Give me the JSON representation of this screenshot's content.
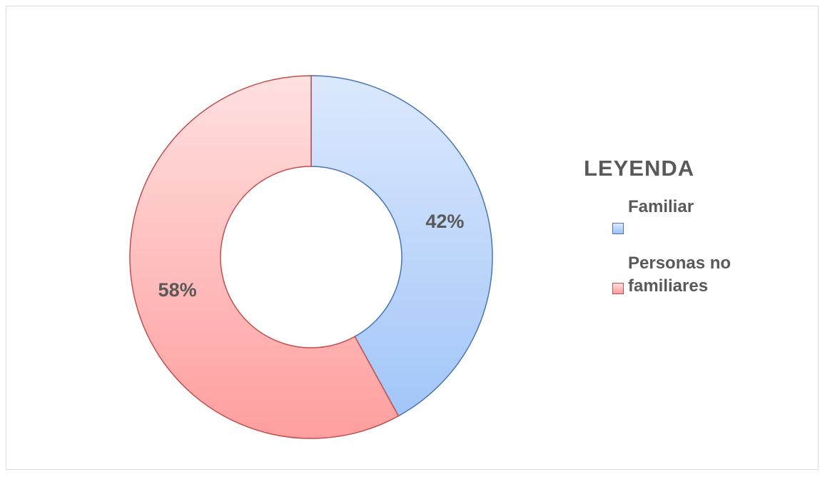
{
  "chart_data": {
    "type": "donut",
    "legend_title": "LEYENDA",
    "categories": [
      "Familiar",
      "Personas no familiares"
    ],
    "values": [
      42,
      58
    ],
    "value_labels": [
      "42%",
      "58%"
    ],
    "colors": [
      [
        "#dce9fd",
        "#9ec3f8"
      ],
      [
        "#ffe0e0",
        "#ff9e9e"
      ]
    ],
    "stroke_colors": [
      "#4a74b4",
      "#c0504d"
    ]
  }
}
